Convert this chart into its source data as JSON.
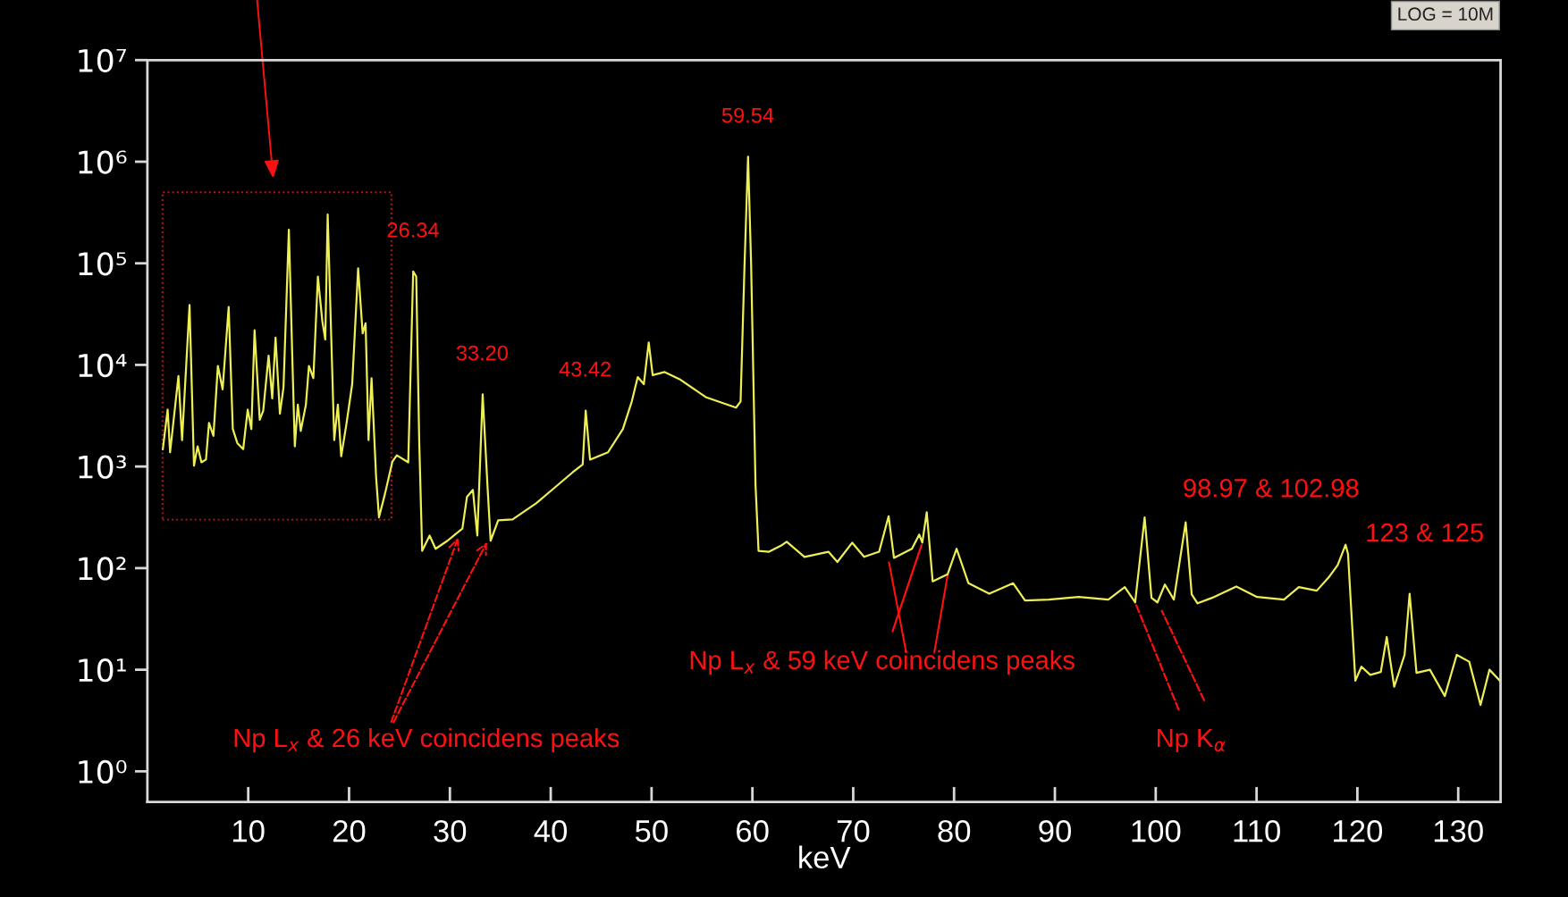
{
  "chart_data": {
    "type": "line",
    "xlabel": "keV",
    "log": "y",
    "grid": false,
    "marker": "none",
    "line_style": "solid",
    "xlim": [
      0,
      134.2
    ],
    "ylim": [
      0.5,
      10000000
    ],
    "xticks": [
      10,
      20,
      30,
      40,
      50,
      60,
      70,
      80,
      90,
      100,
      110,
      120,
      130
    ],
    "yticks": [
      {
        "value": 1,
        "label": "10⁰"
      },
      {
        "value": 10,
        "label": "10¹"
      },
      {
        "value": 100,
        "label": "10²"
      },
      {
        "value": 1000,
        "label": "10³"
      },
      {
        "value": 10000,
        "label": "10⁴"
      },
      {
        "value": 100000,
        "label": "10⁵"
      },
      {
        "value": 1000000,
        "label": "10⁶"
      },
      {
        "value": 10000000,
        "label": "10⁷"
      }
    ],
    "series": [
      {
        "color": "#eeee55",
        "x": [
          1.53,
          2.01,
          2.25,
          3.08,
          3.44,
          4.18,
          4.62,
          4.98,
          5.36,
          5.81,
          6.11,
          6.55,
          6.99,
          7.46,
          8.06,
          8.47,
          8.92,
          9.5,
          9.95,
          10.31,
          10.63,
          11.14,
          11.49,
          12.02,
          12.38,
          12.71,
          13.14,
          13.5,
          14.03,
          14.39,
          14.62,
          14.92,
          15.21,
          15.72,
          16.02,
          16.46,
          16.91,
          17.35,
          17.64,
          17.88,
          18.24,
          18.53,
          18.89,
          19.22,
          19.71,
          20.31,
          20.9,
          21.35,
          21.64,
          21.93,
          22.23,
          22.68,
          22.97,
          23.56,
          24.3,
          24.74,
          25.87,
          26.36,
          26.66,
          26.96,
          27.25,
          27.99,
          28.58,
          29.76,
          31.24,
          31.69,
          32.28,
          32.72,
          33.25,
          33.75,
          34.04,
          34.79,
          36.22,
          38.58,
          40.37,
          42.14,
          43.17,
          43.47,
          43.9,
          45.68,
          47.16,
          48.04,
          48.63,
          49.23,
          49.72,
          50.11,
          51.3,
          52.78,
          55.43,
          58.38,
          58.83,
          59.22,
          59.57,
          59.87,
          60.31,
          60.61,
          61.65,
          62.83,
          63.4,
          65.17,
          67.54,
          68.43,
          69.9,
          71.08,
          72.57,
          73.51,
          74.04,
          75.82,
          76.55,
          76.85,
          77.29,
          77.88,
          79.36,
          80.25,
          81.43,
          83.49,
          85.86,
          87.04,
          89.4,
          92.35,
          95.3,
          96.93,
          97.96,
          98.9,
          99.58,
          100.17,
          100.91,
          101.8,
          102.97,
          103.57,
          104.15,
          105.59,
          107.99,
          110.05,
          112.72,
          114.19,
          115.97,
          117.15,
          118.04,
          118.83,
          119.07,
          119.37,
          119.8,
          120.4,
          121.28,
          122.32,
          122.91,
          123.65,
          124.68,
          125.18,
          125.86,
          127.19,
          128.67,
          129.85,
          131.09,
          132.21,
          133.1,
          134.13
        ],
        "values": [
          1480,
          3630,
          1380,
          7760,
          1820,
          38900,
          1020,
          1580,
          1100,
          1170,
          2690,
          2000,
          9770,
          5750,
          37200,
          2340,
          1700,
          1480,
          3630,
          2340,
          21900,
          2880,
          3550,
          12300,
          4680,
          18600,
          3310,
          6030,
          214000,
          10200,
          1580,
          4070,
          2240,
          4070,
          9770,
          7410,
          74100,
          26900,
          17800,
          302000,
          17800,
          1820,
          4070,
          1260,
          2510,
          6460,
          89100,
          20400,
          25700,
          1820,
          7410,
          794,
          316,
          537,
          1120,
          1290,
          1100,
          83200,
          74100,
          1740,
          148,
          209,
          155,
          186,
          245,
          501,
          589,
          209,
          5130,
          589,
          186,
          295,
          302,
          437,
          617,
          871,
          1050,
          3550,
          1170,
          1380,
          2340,
          4370,
          7590,
          6460,
          16600,
          7940,
          8510,
          7240,
          4790,
          3800,
          4370,
          95500,
          1120000,
          102000,
          661,
          148,
          145,
          166,
          182,
          129,
          145,
          115,
          178,
          129,
          145,
          324,
          126,
          155,
          214,
          178,
          355,
          74,
          87,
          155,
          71,
          56,
          71,
          48,
          49,
          52,
          49,
          65,
          46,
          316,
          51,
          46,
          69,
          49,
          282,
          55,
          45,
          51,
          66,
          52,
          49,
          65,
          60,
          81,
          107,
          170,
          138,
          42,
          7.8,
          10.7,
          8.9,
          9.5,
          21,
          6.8,
          14,
          56,
          9.3,
          10,
          5.5,
          14,
          12,
          4.5,
          10,
          7.8
        ]
      }
    ],
    "annotations": [
      {
        "text": "26.34",
        "x": 26.34,
        "y": 83200
      },
      {
        "text": "33.20",
        "x": 33.2,
        "y": 5130
      },
      {
        "text": "43.42",
        "x": 43.42,
        "y": 3550
      },
      {
        "text": "59.54",
        "x": 59.54,
        "y": 1120000
      },
      "98.97 & 102.98",
      "123 & 125",
      "Np L$_{x}$ & 26 keV coincidens peaks",
      {
        "text": "Np L$_{x}$ & 59 keV coincidens peaks",
        "x": 76.85,
        "y": 178
      },
      {
        "text": "Np K$_{α}$",
        "x": 97.96,
        "y": 46
      },
      "LOG = 10M"
    ]
  }
}
